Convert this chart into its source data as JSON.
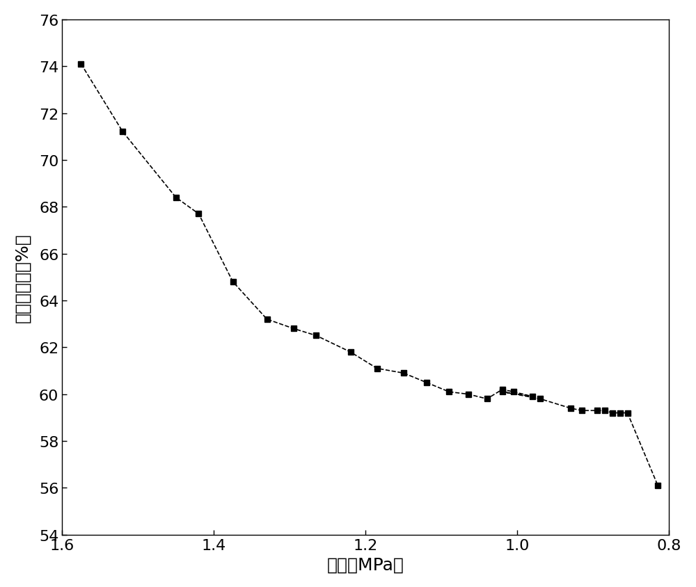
{
  "x": [
    1.575,
    1.52,
    1.45,
    1.42,
    1.375,
    1.33,
    1.295,
    1.265,
    1.22,
    1.185,
    1.15,
    1.12,
    1.09,
    1.065,
    1.04,
    1.02,
    1.005,
    0.98,
    1.02,
    0.97,
    0.93,
    0.915,
    0.895,
    0.885,
    0.875,
    0.865,
    0.855,
    0.815
  ],
  "y": [
    74.1,
    71.2,
    68.4,
    67.7,
    64.8,
    63.2,
    62.8,
    62.5,
    61.8,
    61.1,
    60.9,
    60.5,
    60.1,
    60.0,
    59.8,
    60.2,
    60.1,
    59.9,
    60.1,
    59.8,
    59.4,
    59.3,
    59.3,
    59.3,
    59.2,
    59.2,
    59.2,
    56.1
  ],
  "xlabel": "压力（MPa）",
  "ylabel": "含油饱和度（%）",
  "xlim": [
    1.6,
    0.8
  ],
  "ylim": [
    54,
    76
  ],
  "yticks": [
    54,
    56,
    58,
    60,
    62,
    64,
    66,
    68,
    70,
    72,
    74,
    76
  ],
  "xticks": [
    1.6,
    1.4,
    1.2,
    1.0,
    0.8
  ],
  "line_color": "#000000",
  "marker": "s",
  "markersize": 6,
  "linewidth": 1.2,
  "linestyle": "--",
  "xlabel_fontsize": 18,
  "ylabel_fontsize": 18,
  "tick_fontsize": 16,
  "background_color": "#ffffff"
}
